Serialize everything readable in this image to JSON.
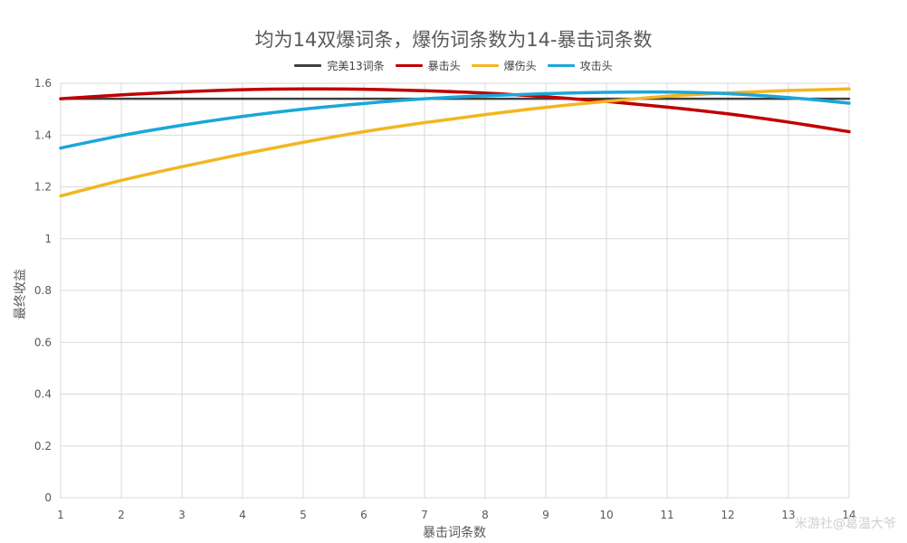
{
  "chart_data": {
    "type": "line",
    "title": "均为14双爆词条，爆伤词条数为14-暴击词条数",
    "xlabel": "暴击词条数",
    "ylabel": "最终收益",
    "x": [
      1,
      2,
      3,
      4,
      5,
      6,
      7,
      8,
      9,
      10,
      11,
      12,
      13,
      14
    ],
    "xlim": [
      1,
      14
    ],
    "ylim": [
      0,
      1.6
    ],
    "yticks": [
      "0",
      "0.2",
      "0.4",
      "0.6",
      "0.8",
      "1",
      "1.2",
      "1.4",
      "1.6"
    ],
    "xticks": [
      "1",
      "2",
      "3",
      "4",
      "5",
      "6",
      "7",
      "8",
      "9",
      "10",
      "11",
      "12",
      "13",
      "14"
    ],
    "grid": true,
    "legend_position": "top",
    "series": [
      {
        "name": "完美13词条",
        "color": "#404040",
        "values": [
          1.54,
          1.54,
          1.54,
          1.54,
          1.54,
          1.54,
          1.54,
          1.54,
          1.54,
          1.54,
          1.54,
          1.54,
          1.54,
          1.54
        ]
      },
      {
        "name": "暴击头",
        "color": "#c00000",
        "values": [
          1.54,
          1.555,
          1.567,
          1.575,
          1.578,
          1.577,
          1.571,
          1.562,
          1.548,
          1.53,
          1.508,
          1.482,
          1.45,
          1.413
        ]
      },
      {
        "name": "爆伤头",
        "color": "#f2b622",
        "values": [
          1.165,
          1.225,
          1.278,
          1.327,
          1.372,
          1.413,
          1.448,
          1.479,
          1.507,
          1.53,
          1.55,
          1.563,
          1.572,
          1.578
        ]
      },
      {
        "name": "攻击头",
        "color": "#1aa7d9",
        "values": [
          1.35,
          1.398,
          1.438,
          1.472,
          1.5,
          1.522,
          1.54,
          1.552,
          1.56,
          1.565,
          1.566,
          1.56,
          1.545,
          1.523
        ]
      }
    ]
  },
  "watermark": "米游社@葛温大爷"
}
